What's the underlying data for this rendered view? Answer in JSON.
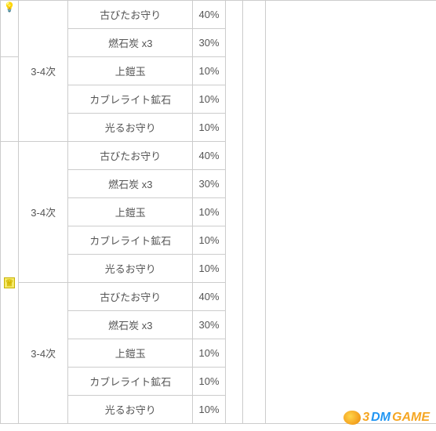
{
  "groups": [
    {
      "times_label": "3-4次",
      "rows": [
        {
          "item": "古びたお守り",
          "pct": "40%"
        },
        {
          "item": "燃石炭 x3",
          "pct": "30%"
        },
        {
          "item": "上鎧玉",
          "pct": "10%"
        },
        {
          "item": "カブレライト鉱石",
          "pct": "10%"
        },
        {
          "item": "光るお守り",
          "pct": "10%"
        }
      ]
    },
    {
      "times_label": "3-4次",
      "rows": [
        {
          "item": "古びたお守り",
          "pct": "40%"
        },
        {
          "item": "燃石炭 x3",
          "pct": "30%"
        },
        {
          "item": "上鎧玉",
          "pct": "10%"
        },
        {
          "item": "カブレライト鉱石",
          "pct": "10%"
        },
        {
          "item": "光るお守り",
          "pct": "10%"
        }
      ]
    },
    {
      "times_label": "3-4次",
      "rows": [
        {
          "item": "古びたお守り",
          "pct": "40%"
        },
        {
          "item": "燃石炭 x3",
          "pct": "30%"
        },
        {
          "item": "上鎧玉",
          "pct": "10%"
        },
        {
          "item": "カブレライト鉱石",
          "pct": "10%"
        },
        {
          "item": "光るお守り",
          "pct": "10%"
        }
      ]
    }
  ],
  "icons": {
    "top_glyph": "💡",
    "mid_glyph": "♕"
  },
  "watermark": {
    "three": "3",
    "dm": "DM",
    "game": "GAME"
  },
  "colors": {
    "border": "#cccccc",
    "text": "#555555",
    "bg": "#ffffff",
    "wm_orange": "#f5a623",
    "wm_blue": "#2196f3",
    "icon_bg": "#f5e96a",
    "icon_border": "#c8b200"
  }
}
